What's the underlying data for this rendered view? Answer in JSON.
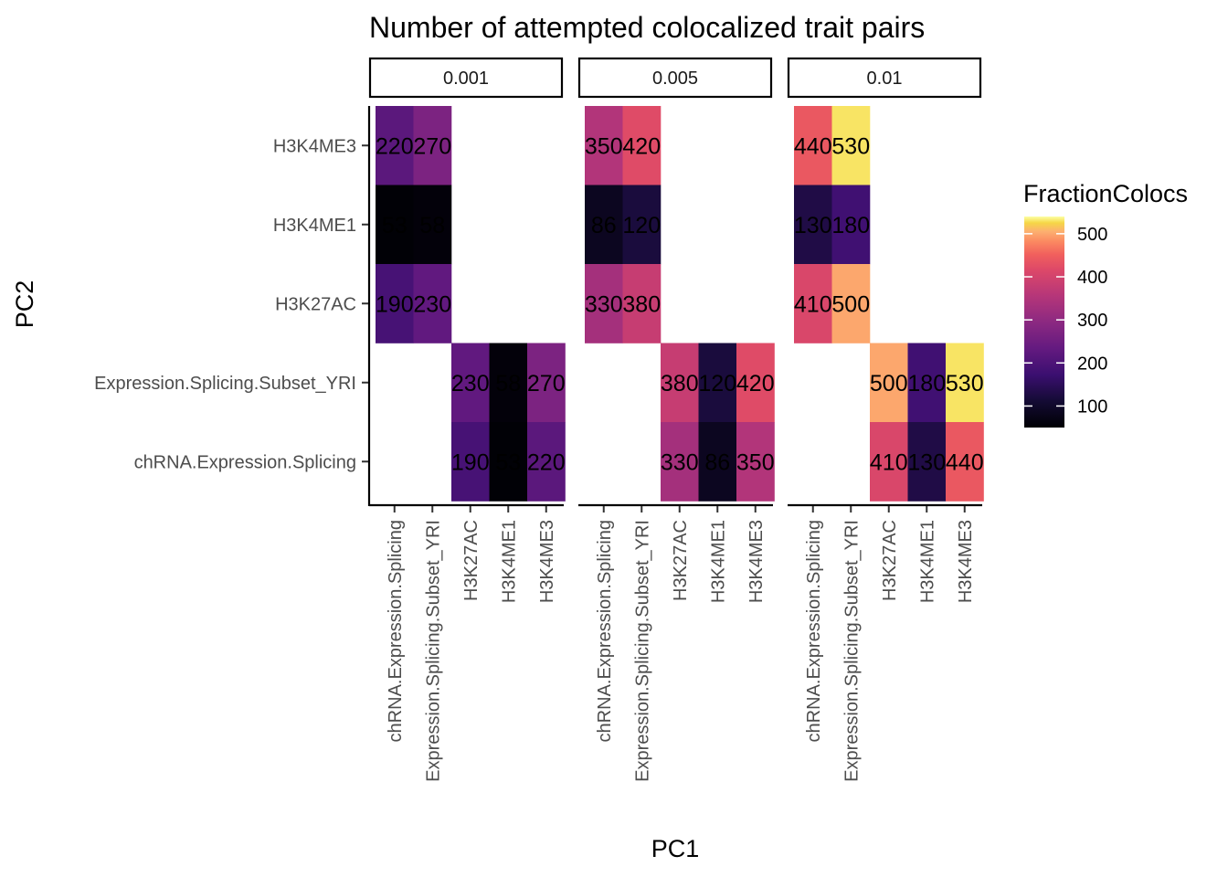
{
  "chart_data": {
    "type": "heatmap",
    "title": "Number of attempted colocalized trait pairs",
    "xlabel": "PC1",
    "ylabel": "PC2",
    "x_categories": [
      "chRNA.Expression.Splicing",
      "Expression.Splicing.Subset_YRI",
      "H3K27AC",
      "H3K4ME1",
      "H3K4ME3"
    ],
    "y_categories": [
      "H3K4ME3",
      "H3K4ME1",
      "H3K27AC",
      "Expression.Splicing.Subset_YRI",
      "chRNA.Expression.Splicing"
    ],
    "legend": {
      "title": "FractionColocs",
      "ticks": [
        100,
        200,
        300,
        400,
        500
      ],
      "range": [
        50,
        540
      ],
      "palette": "inferno",
      "placement": "right"
    },
    "grid": false,
    "facets": [
      {
        "label": "0.001",
        "cells": [
          {
            "x": "chRNA.Expression.Splicing",
            "y": "H3K4ME3",
            "value": 220,
            "label": "220"
          },
          {
            "x": "Expression.Splicing.Subset_YRI",
            "y": "H3K4ME3",
            "value": 270,
            "label": "270"
          },
          {
            "x": "chRNA.Expression.Splicing",
            "y": "H3K4ME1",
            "value": 53,
            "label": "53"
          },
          {
            "x": "Expression.Splicing.Subset_YRI",
            "y": "H3K4ME1",
            "value": 58,
            "label": "58"
          },
          {
            "x": "chRNA.Expression.Splicing",
            "y": "H3K27AC",
            "value": 190,
            "label": "190"
          },
          {
            "x": "Expression.Splicing.Subset_YRI",
            "y": "H3K27AC",
            "value": 230,
            "label": "230"
          },
          {
            "x": "H3K27AC",
            "y": "Expression.Splicing.Subset_YRI",
            "value": 230,
            "label": "230"
          },
          {
            "x": "H3K4ME1",
            "y": "Expression.Splicing.Subset_YRI",
            "value": 58,
            "label": "58"
          },
          {
            "x": "H3K4ME3",
            "y": "Expression.Splicing.Subset_YRI",
            "value": 270,
            "label": "270"
          },
          {
            "x": "H3K27AC",
            "y": "chRNA.Expression.Splicing",
            "value": 190,
            "label": "190"
          },
          {
            "x": "H3K4ME1",
            "y": "chRNA.Expression.Splicing",
            "value": 53,
            "label": "53"
          },
          {
            "x": "H3K4ME3",
            "y": "chRNA.Expression.Splicing",
            "value": 220,
            "label": "220"
          }
        ]
      },
      {
        "label": "0.005",
        "cells": [
          {
            "x": "chRNA.Expression.Splicing",
            "y": "H3K4ME3",
            "value": 350,
            "label": "350"
          },
          {
            "x": "Expression.Splicing.Subset_YRI",
            "y": "H3K4ME3",
            "value": 420,
            "label": "420"
          },
          {
            "x": "chRNA.Expression.Splicing",
            "y": "H3K4ME1",
            "value": 86,
            "label": "86"
          },
          {
            "x": "Expression.Splicing.Subset_YRI",
            "y": "H3K4ME1",
            "value": 120,
            "label": "120"
          },
          {
            "x": "chRNA.Expression.Splicing",
            "y": "H3K27AC",
            "value": 330,
            "label": "330"
          },
          {
            "x": "Expression.Splicing.Subset_YRI",
            "y": "H3K27AC",
            "value": 380,
            "label": "380"
          },
          {
            "x": "H3K27AC",
            "y": "Expression.Splicing.Subset_YRI",
            "value": 380,
            "label": "380"
          },
          {
            "x": "H3K4ME1",
            "y": "Expression.Splicing.Subset_YRI",
            "value": 120,
            "label": "120"
          },
          {
            "x": "H3K4ME3",
            "y": "Expression.Splicing.Subset_YRI",
            "value": 420,
            "label": "420"
          },
          {
            "x": "H3K27AC",
            "y": "chRNA.Expression.Splicing",
            "value": 330,
            "label": "330"
          },
          {
            "x": "H3K4ME1",
            "y": "chRNA.Expression.Splicing",
            "value": 86,
            "label": "86"
          },
          {
            "x": "H3K4ME3",
            "y": "chRNA.Expression.Splicing",
            "value": 350,
            "label": "350"
          }
        ]
      },
      {
        "label": "0.01",
        "cells": [
          {
            "x": "chRNA.Expression.Splicing",
            "y": "H3K4ME3",
            "value": 440,
            "label": "440"
          },
          {
            "x": "Expression.Splicing.Subset_YRI",
            "y": "H3K4ME3",
            "value": 530,
            "label": "530"
          },
          {
            "x": "chRNA.Expression.Splicing",
            "y": "H3K4ME1",
            "value": 130,
            "label": "130"
          },
          {
            "x": "Expression.Splicing.Subset_YRI",
            "y": "H3K4ME1",
            "value": 180,
            "label": "180"
          },
          {
            "x": "chRNA.Expression.Splicing",
            "y": "H3K27AC",
            "value": 410,
            "label": "410"
          },
          {
            "x": "Expression.Splicing.Subset_YRI",
            "y": "H3K27AC",
            "value": 500,
            "label": "500"
          },
          {
            "x": "H3K27AC",
            "y": "Expression.Splicing.Subset_YRI",
            "value": 500,
            "label": "500"
          },
          {
            "x": "H3K4ME1",
            "y": "Expression.Splicing.Subset_YRI",
            "value": 180,
            "label": "180"
          },
          {
            "x": "H3K4ME3",
            "y": "Expression.Splicing.Subset_YRI",
            "value": 530,
            "label": "530"
          },
          {
            "x": "H3K27AC",
            "y": "chRNA.Expression.Splicing",
            "value": 410,
            "label": "410"
          },
          {
            "x": "H3K4ME1",
            "y": "chRNA.Expression.Splicing",
            "value": 130,
            "label": "130"
          },
          {
            "x": "H3K4ME3",
            "y": "chRNA.Expression.Splicing",
            "value": 440,
            "label": "440"
          }
        ]
      }
    ]
  }
}
